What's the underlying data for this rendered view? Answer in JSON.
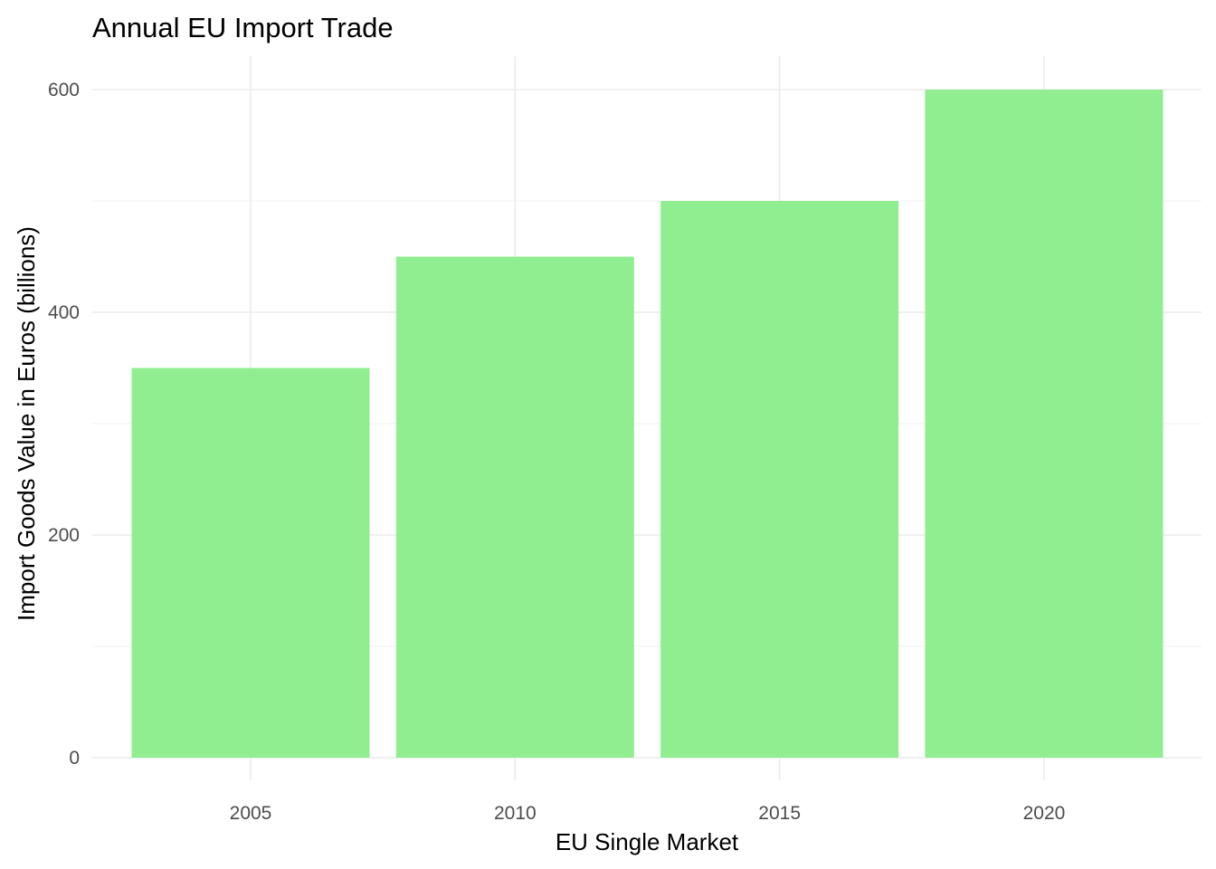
{
  "chart_data": {
    "type": "bar",
    "title": "Annual EU Import Trade",
    "xlabel": "EU Single Market",
    "ylabel": "Import Goods Value in Euros (billions)",
    "categories": [
      "2005",
      "2010",
      "2015",
      "2020"
    ],
    "values": [
      350,
      450,
      500,
      600
    ],
    "ylim": [
      0,
      625
    ],
    "yticks": [
      0,
      200,
      400,
      600
    ],
    "bar_color": "#90EE90",
    "grid": true,
    "legend": "none"
  }
}
